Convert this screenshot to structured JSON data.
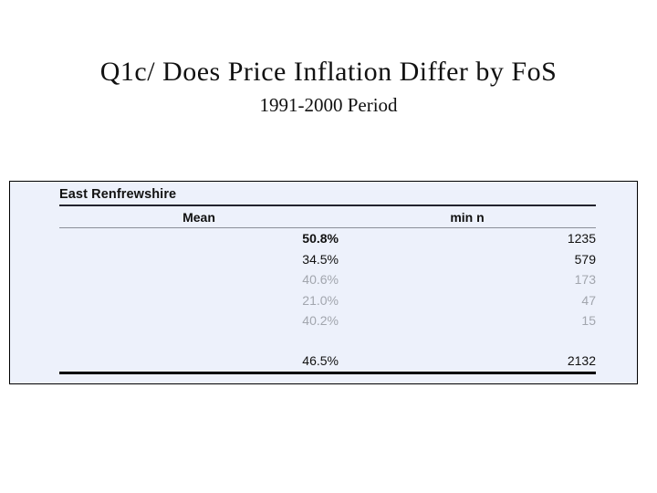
{
  "slide": {
    "title": "Q1c/ Does Price Inflation Differ by FoS",
    "subtitle": "1991-2000 Period"
  },
  "table": {
    "region": "East Renfrewshire",
    "columns": {
      "mean": "Mean",
      "min_n": "min n"
    },
    "rows": [
      {
        "mean": "50.8%",
        "min_n": "1235"
      },
      {
        "mean": "34.5%",
        "min_n": "579"
      },
      {
        "mean": "40.6%",
        "min_n": "173"
      },
      {
        "mean": "21.0%",
        "min_n": "47"
      },
      {
        "mean": "40.2%",
        "min_n": "15"
      }
    ],
    "total": {
      "mean": "46.5%",
      "min_n": "2132"
    }
  },
  "colors": {
    "page_bg": "#ffffff",
    "panel_bg": "#edf1fb",
    "panel_border": "#000000",
    "dark_rule": "#23232e",
    "gray_rule": "#8c909a",
    "text": "#111111",
    "muted_text": "#a2a6ae"
  }
}
